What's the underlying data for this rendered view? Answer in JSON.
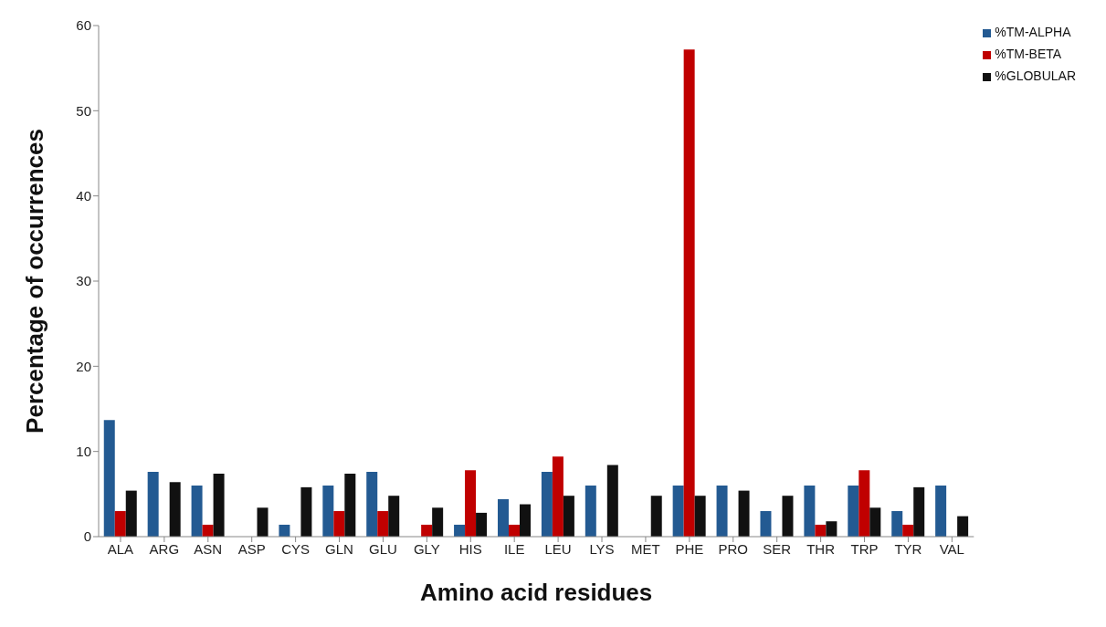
{
  "chart_data": {
    "type": "bar",
    "xlabel": "Amino acid residues",
    "ylabel": "Percentage of occurrences",
    "categories": [
      "ALA",
      "ARG",
      "ASN",
      "ASP",
      "CYS",
      "GLN",
      "GLU",
      "GLY",
      "HIS",
      "ILE",
      "LEU",
      "LYS",
      "MET",
      "PHE",
      "PRO",
      "SER",
      "THR",
      "TRP",
      "TYR",
      "VAL"
    ],
    "series": [
      {
        "name": "%TM-ALPHA",
        "color": "#235a92",
        "values": [
          13.7,
          7.6,
          6.0,
          0,
          1.4,
          6.0,
          7.6,
          0,
          1.4,
          4.4,
          7.6,
          6.0,
          0,
          6.0,
          6.0,
          3.0,
          6.0,
          6.0,
          3.0,
          6.0
        ]
      },
      {
        "name": "%TM-BETA",
        "color": "#c00000",
        "values": [
          3.0,
          0,
          1.4,
          0,
          0,
          3.0,
          3.0,
          1.4,
          7.8,
          1.4,
          9.4,
          0,
          0,
          57.2,
          0,
          0,
          1.4,
          7.8,
          1.4,
          0
        ]
      },
      {
        "name": "%GLOBULAR",
        "color": "#111111",
        "values": [
          5.4,
          6.4,
          7.4,
          3.4,
          5.8,
          7.4,
          4.8,
          3.4,
          2.8,
          3.8,
          4.8,
          8.4,
          4.8,
          4.8,
          5.4,
          4.8,
          1.8,
          3.4,
          5.8,
          2.4
        ]
      }
    ],
    "ylim": [
      0,
      60
    ],
    "yticks": [
      0,
      10,
      20,
      30,
      40,
      50,
      60
    ],
    "grid": false,
    "legend": "top right"
  }
}
